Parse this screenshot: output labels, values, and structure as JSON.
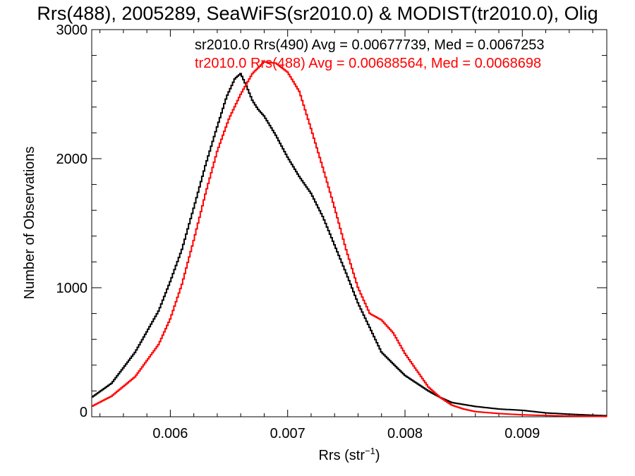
{
  "chart_data": {
    "type": "line",
    "title": "Rrs(488), 2005289, SeaWiFS(sr2010.0) & MODIST(tr2010.0), Olig",
    "xlabel": "Rrs (str",
    "xlabel_sup": "−1",
    "xlabel_end": ")",
    "ylabel": "Number of Observations",
    "xlim": [
      0.00533,
      0.00972
    ],
    "ylim": [
      0,
      3000
    ],
    "x_ticks": [
      0.006,
      0.007,
      0.008,
      0.009
    ],
    "x_tick_labels": [
      "0.006",
      "0.007",
      "0.008",
      "0.009"
    ],
    "y_ticks": [
      0,
      1000,
      2000,
      3000
    ],
    "y_tick_labels": [
      "0",
      "1000",
      "2000",
      "3000"
    ],
    "grid": false,
    "legend_position": "top",
    "series": [
      {
        "name": "sr2010.0 Rrs(490) Avg = 0.00677739, Med = 0.0067253",
        "color": "#000000",
        "x": [
          0.00533,
          0.0055,
          0.0057,
          0.0059,
          0.006,
          0.0061,
          0.0062,
          0.0063,
          0.0064,
          0.00648,
          0.00655,
          0.0066,
          0.00665,
          0.0067,
          0.00675,
          0.0068,
          0.0069,
          0.007,
          0.0071,
          0.0072,
          0.0073,
          0.0074,
          0.0075,
          0.0076,
          0.0077,
          0.0078,
          0.0079,
          0.008,
          0.0081,
          0.0082,
          0.0083,
          0.0084,
          0.0086,
          0.0088,
          0.009,
          0.0092,
          0.0094,
          0.0096,
          0.00972
        ],
        "y": [
          150,
          260,
          500,
          820,
          1050,
          1300,
          1620,
          1950,
          2250,
          2480,
          2620,
          2660,
          2560,
          2450,
          2380,
          2330,
          2180,
          2010,
          1860,
          1730,
          1550,
          1330,
          1110,
          880,
          690,
          500,
          410,
          320,
          260,
          200,
          150,
          110,
          80,
          60,
          50,
          30,
          20,
          12,
          8
        ]
      },
      {
        "name": "tr2010.0 Rrs(488) Avg = 0.00688564, Med = 0.0068698",
        "color": "#ff0000",
        "x": [
          0.00533,
          0.0055,
          0.0057,
          0.0059,
          0.006,
          0.0061,
          0.0062,
          0.0063,
          0.0064,
          0.0065,
          0.0066,
          0.0067,
          0.0068,
          0.0069,
          0.007,
          0.0071,
          0.0072,
          0.0073,
          0.0074,
          0.0075,
          0.0076,
          0.0077,
          0.0078,
          0.0079,
          0.008,
          0.0081,
          0.0082,
          0.0083,
          0.0084,
          0.0085,
          0.0086,
          0.0088,
          0.009,
          0.0092,
          0.0094,
          0.0096,
          0.00972
        ],
        "y": [
          80,
          160,
          310,
          560,
          760,
          1030,
          1370,
          1730,
          2060,
          2310,
          2500,
          2660,
          2750,
          2740,
          2670,
          2520,
          2230,
          1930,
          1620,
          1290,
          1000,
          800,
          750,
          650,
          490,
          360,
          230,
          150,
          90,
          60,
          40,
          25,
          15,
          10,
          6,
          4,
          2
        ]
      }
    ]
  }
}
